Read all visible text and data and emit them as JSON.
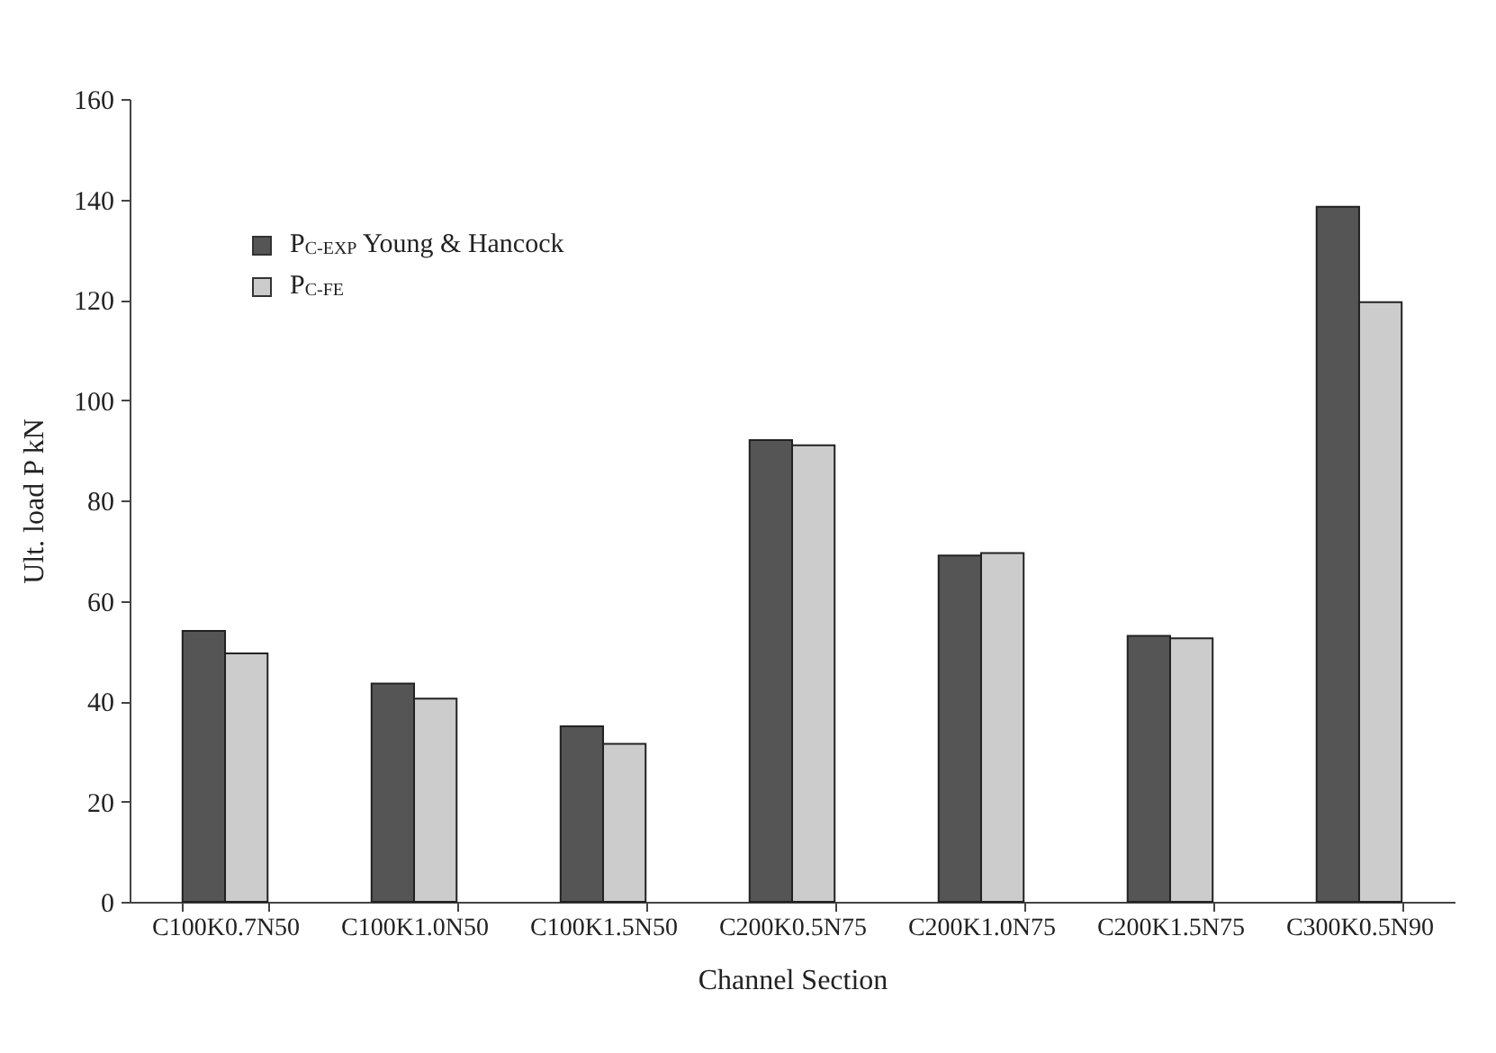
{
  "chart_data": {
    "type": "bar",
    "xlabel": "Channel Section",
    "ylabel": "Ult. load P kN",
    "categories": [
      "C100K0.7N50",
      "C100K1.0N50",
      "C100K1.5N50",
      "C200K0.5N75",
      "C200K1.0N75",
      "C200K1.5N75",
      "C300K0.5N90"
    ],
    "series": [
      {
        "name": "P$_{C-EXP}$ Young & Hancock",
        "color": "#555555",
        "values": [
          54,
          43.5,
          35,
          92,
          69,
          53,
          138.5
        ]
      },
      {
        "name": "P$_{C-FE}$",
        "color": "#cccccc",
        "values": [
          49.5,
          40.5,
          31.5,
          91,
          69.5,
          52.5,
          119.5
        ]
      }
    ],
    "ylim": [
      0,
      160
    ],
    "yticks": [
      0,
      20,
      40,
      60,
      80,
      100,
      120,
      140,
      160
    ],
    "grid": false,
    "legend": "top left"
  }
}
